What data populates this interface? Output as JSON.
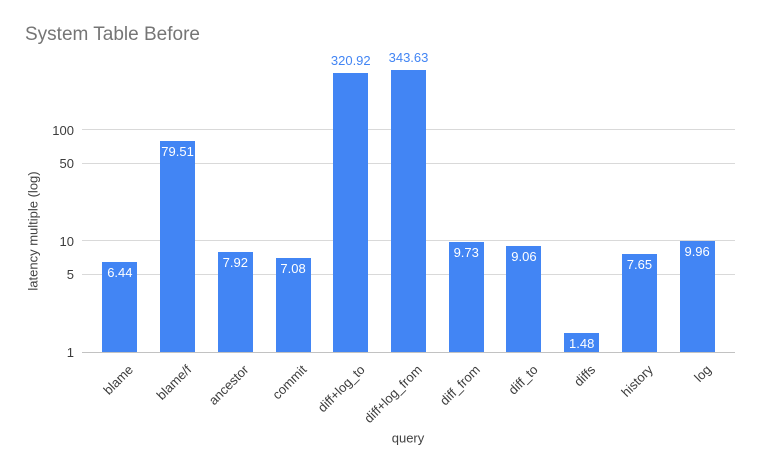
{
  "chart_data": {
    "type": "bar",
    "title": "System Table Before",
    "xlabel": "query",
    "ylabel": "latency multiple (log)",
    "yscale": "log",
    "ylim": [
      1,
      460
    ],
    "yticks": [
      1,
      5,
      10,
      50,
      100
    ],
    "grid": true,
    "legend_position": "none",
    "categories": [
      "blame",
      "blame/f",
      "ancestor",
      "commit",
      "diff+log_to",
      "diff+log_from",
      "diff_from",
      "diff_to",
      "diffs",
      "history",
      "log"
    ],
    "values": [
      6.44,
      79.51,
      7.92,
      7.08,
      320.92,
      343.63,
      9.73,
      9.06,
      1.48,
      7.65,
      9.96
    ],
    "value_label_outside_threshold": 100,
    "colors": {
      "bar": "#4285f4",
      "value_label_inside": "#ffffff",
      "value_label_outside": "#4285f4",
      "grid": "#d9d9d9",
      "axis_line": "#c2c2c2",
      "tick_label": "#3c3c3c",
      "axis_title": "#424242",
      "chart_title": "#757575",
      "background": "#ffffff"
    }
  }
}
